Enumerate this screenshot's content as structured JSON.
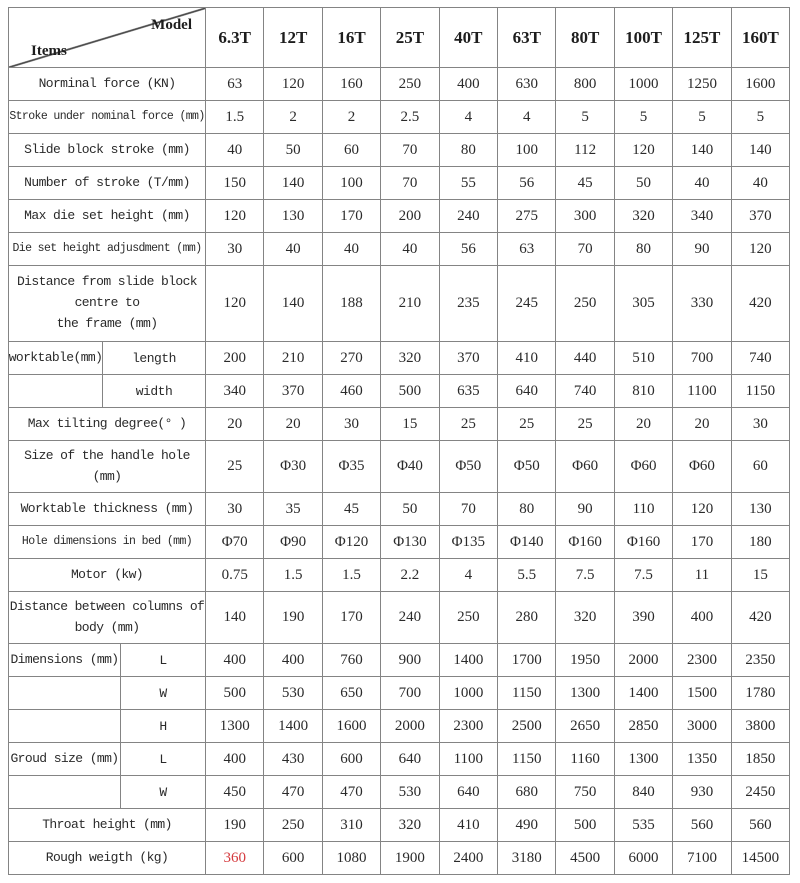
{
  "header": {
    "model_label": "Model",
    "items_label": "Items",
    "columns": [
      "6.3T",
      "12T",
      "16T",
      "25T",
      "40T",
      "63T",
      "80T",
      "100T",
      "125T",
      "160T"
    ]
  },
  "rows": [
    {
      "label": "Norminal force (KN)",
      "values": [
        "63",
        "120",
        "160",
        "250",
        "400",
        "630",
        "800",
        "1000",
        "1250",
        "1600"
      ]
    },
    {
      "label": "Stroke under nominal force (mm)",
      "values": [
        "1.5",
        "2",
        "2",
        "2.5",
        "4",
        "4",
        "5",
        "5",
        "5",
        "5"
      ]
    },
    {
      "label": "Slide block stroke (mm)",
      "values": [
        "40",
        "50",
        "60",
        "70",
        "80",
        "100",
        "112",
        "120",
        "140",
        "140"
      ]
    },
    {
      "label": "Number of stroke (T/mm)",
      "values": [
        "150",
        "140",
        "100",
        "70",
        "55",
        "56",
        "45",
        "50",
        "40",
        "40"
      ]
    },
    {
      "label": "Max die set height (mm)",
      "values": [
        "120",
        "130",
        "170",
        "200",
        "240",
        "275",
        "300",
        "320",
        "340",
        "370"
      ]
    },
    {
      "label": "Die set height adjusdment (mm)",
      "values": [
        "30",
        "40",
        "40",
        "40",
        "56",
        "63",
        "70",
        "80",
        "90",
        "120"
      ]
    },
    {
      "label": "Distance from slide block\ncentre to\nthe frame (mm)",
      "values": [
        "120",
        "140",
        "188",
        "210",
        "235",
        "245",
        "250",
        "305",
        "330",
        "420"
      ]
    },
    {
      "label": "worktable(mm)",
      "sub": "length",
      "values": [
        "200",
        "210",
        "270",
        "320",
        "370",
        "410",
        "440",
        "510",
        "700",
        "740"
      ]
    },
    {
      "label": "",
      "sub": "width",
      "group": "wt",
      "values": [
        "340",
        "370",
        "460",
        "500",
        "635",
        "640",
        "740",
        "810",
        "1100",
        "1150"
      ]
    },
    {
      "label": "Max tilting degree(° )",
      "values": [
        "20",
        "20",
        "30",
        "15",
        "25",
        "25",
        "25",
        "20",
        "20",
        "30"
      ]
    },
    {
      "label": "Size of the handle hole\n(mm)",
      "values": [
        "25",
        "Φ30",
        "Φ35",
        "Φ40",
        "Φ50",
        "Φ50",
        "Φ60",
        "Φ60",
        "Φ60",
        "60"
      ]
    },
    {
      "label": "Worktable thickness (mm)",
      "values": [
        "30",
        "35",
        "45",
        "50",
        "70",
        "80",
        "90",
        "110",
        "120",
        "130"
      ]
    },
    {
      "label": "Hole dimensions in bed (mm)",
      "values": [
        "Φ70",
        "Φ90",
        "Φ120",
        "Φ130",
        "Φ135",
        "Φ140",
        "Φ160",
        "Φ160",
        "170",
        "180"
      ]
    },
    {
      "label": "Motor (kw)",
      "values": [
        "0.75",
        "1.5",
        "1.5",
        "2.2",
        "4",
        "5.5",
        "7.5",
        "7.5",
        "11",
        "15"
      ]
    },
    {
      "label": "Distance between columns of\nbody (mm)",
      "values": [
        "140",
        "190",
        "170",
        "240",
        "250",
        "280",
        "320",
        "390",
        "400",
        "420"
      ]
    },
    {
      "label": "Dimensions (mm)",
      "sub": "L",
      "values": [
        "400",
        "400",
        "760",
        "900",
        "1400",
        "1700",
        "1950",
        "2000",
        "2300",
        "2350"
      ]
    },
    {
      "label": "",
      "sub": "W",
      "group": "dim",
      "values": [
        "500",
        "530",
        "650",
        "700",
        "1000",
        "1150",
        "1300",
        "1400",
        "1500",
        "1780"
      ]
    },
    {
      "label": "",
      "sub": "H",
      "group": "dim",
      "values": [
        "1300",
        "1400",
        "1600",
        "2000",
        "2300",
        "2500",
        "2650",
        "2850",
        "3000",
        "3800"
      ]
    },
    {
      "label": "Groud size (mm)",
      "sub": "L",
      "values": [
        "400",
        "430",
        "600",
        "640",
        "1100",
        "1150",
        "1160",
        "1300",
        "1350",
        "1850"
      ]
    },
    {
      "label": "",
      "sub": "W",
      "group": "dim",
      "values": [
        "450",
        "470",
        "470",
        "530",
        "640",
        "680",
        "750",
        "840",
        "930",
        "2450"
      ]
    },
    {
      "label": "Throat height (mm)",
      "values": [
        "190",
        "250",
        "310",
        "320",
        "410",
        "490",
        "500",
        "535",
        "560",
        "560"
      ]
    },
    {
      "label": "Rough weigth (kg)",
      "highlight": [
        0
      ],
      "values": [
        "360",
        "600",
        "1080",
        "1900",
        "2400",
        "3180",
        "4500",
        "6000",
        "7100",
        "14500"
      ]
    }
  ],
  "colors": {
    "highlight_red": "#d53a3e",
    "grid": "#848484",
    "text": "#2a2a2a"
  }
}
